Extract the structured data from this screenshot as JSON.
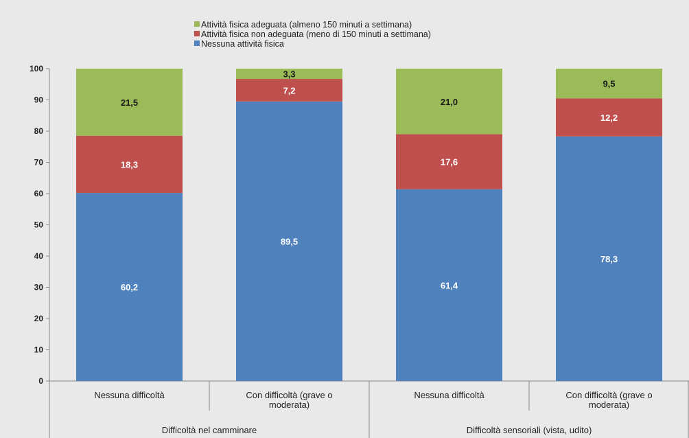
{
  "chart_data": {
    "type": "bar",
    "stacked": true,
    "categories": [
      [
        "Nessuna difficoltà"
      ],
      [
        "Con difficoltà (grave o",
        "moderata)"
      ],
      [
        "Nessuna difficoltà"
      ],
      [
        "Con difficoltà (grave o",
        "moderata)"
      ]
    ],
    "groups": [
      {
        "label": "Difficoltà nel camminare",
        "span": [
          0,
          1
        ]
      },
      {
        "label": "Difficoltà sensoriali (vista, udito)",
        "span": [
          2,
          3
        ]
      }
    ],
    "series": [
      {
        "name": "Nessuna attività fisica",
        "color": "#4f81bd",
        "label_color": "#ffffff",
        "values": [
          60.2,
          89.5,
          61.4,
          78.3
        ],
        "labels": [
          "60,2",
          "89,5",
          "61,4",
          "78,3"
        ]
      },
      {
        "name": "Attività fisica non adeguata (meno di 150 minuti a settimana)",
        "color": "#c0504d",
        "label_color": "#ffffff",
        "values": [
          18.3,
          7.2,
          17.6,
          12.2
        ],
        "labels": [
          "18,3",
          "7,2",
          "17,6",
          "12,2"
        ]
      },
      {
        "name": "Attività fisica adeguata (almeno 150 minuti a settimana)",
        "color": "#9bbb59",
        "label_color": "#1a1a1a",
        "values": [
          21.5,
          3.3,
          21.0,
          9.5
        ],
        "labels": [
          "21,5",
          "3,3",
          "21,0",
          "9,5"
        ]
      }
    ],
    "legend_order": [
      2,
      1,
      0
    ],
    "legend_position": "top-center",
    "ylim": [
      0,
      100
    ],
    "yticks": [
      0,
      10,
      20,
      30,
      40,
      50,
      60,
      70,
      80,
      90,
      100
    ],
    "grid": false
  }
}
